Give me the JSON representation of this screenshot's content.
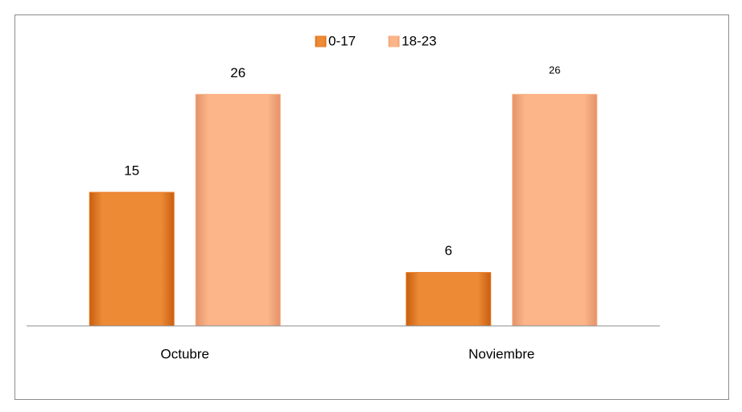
{
  "chart_data": {
    "type": "bar",
    "categories": [
      "Octubre",
      "Noviembre"
    ],
    "series": [
      {
        "name": "0-17",
        "color": "#e87a22",
        "values": [
          15,
          6
        ]
      },
      {
        "name": "18-23",
        "color": "#f9ad7f",
        "values": [
          26,
          26
        ]
      }
    ],
    "ylim": [
      0,
      30
    ]
  }
}
